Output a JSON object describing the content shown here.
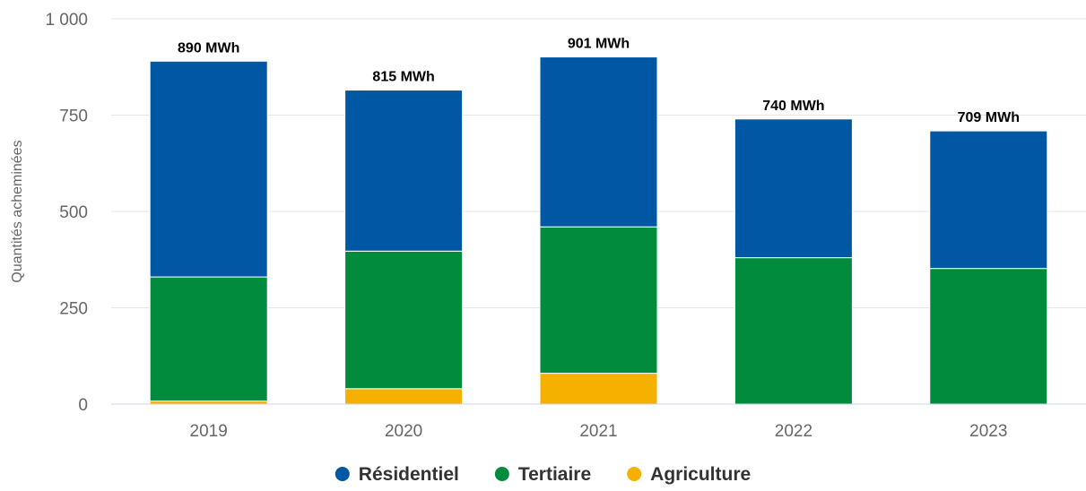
{
  "chart_data": {
    "type": "bar",
    "stacked": true,
    "categories": [
      "2019",
      "2020",
      "2021",
      "2022",
      "2023"
    ],
    "series": [
      {
        "name": "Agriculture",
        "values": [
          8,
          40,
          80,
          0,
          0
        ],
        "color": "#f5b000"
      },
      {
        "name": "Tertiaire",
        "values": [
          322,
          357,
          380,
          380,
          352
        ],
        "color": "#008c3c"
      },
      {
        "name": "Résidentiel",
        "values": [
          560,
          418,
          441,
          360,
          357
        ],
        "color": "#0057a3"
      }
    ],
    "totals": [
      "890 MWh",
      "815 MWh",
      "901 MWh",
      "740 MWh",
      "709 MWh"
    ],
    "legend_order": [
      "Résidentiel",
      "Tertiaire",
      "Agriculture"
    ],
    "y_ticks": [
      "0",
      "250",
      "500",
      "750",
      "1 000"
    ],
    "y_tick_values": [
      0,
      250,
      500,
      750,
      1000
    ],
    "ylabel": "Quantités acheminées",
    "xlabel": "",
    "ylim": [
      0,
      1000
    ],
    "grid": true,
    "legend_position": "bottom-center"
  }
}
